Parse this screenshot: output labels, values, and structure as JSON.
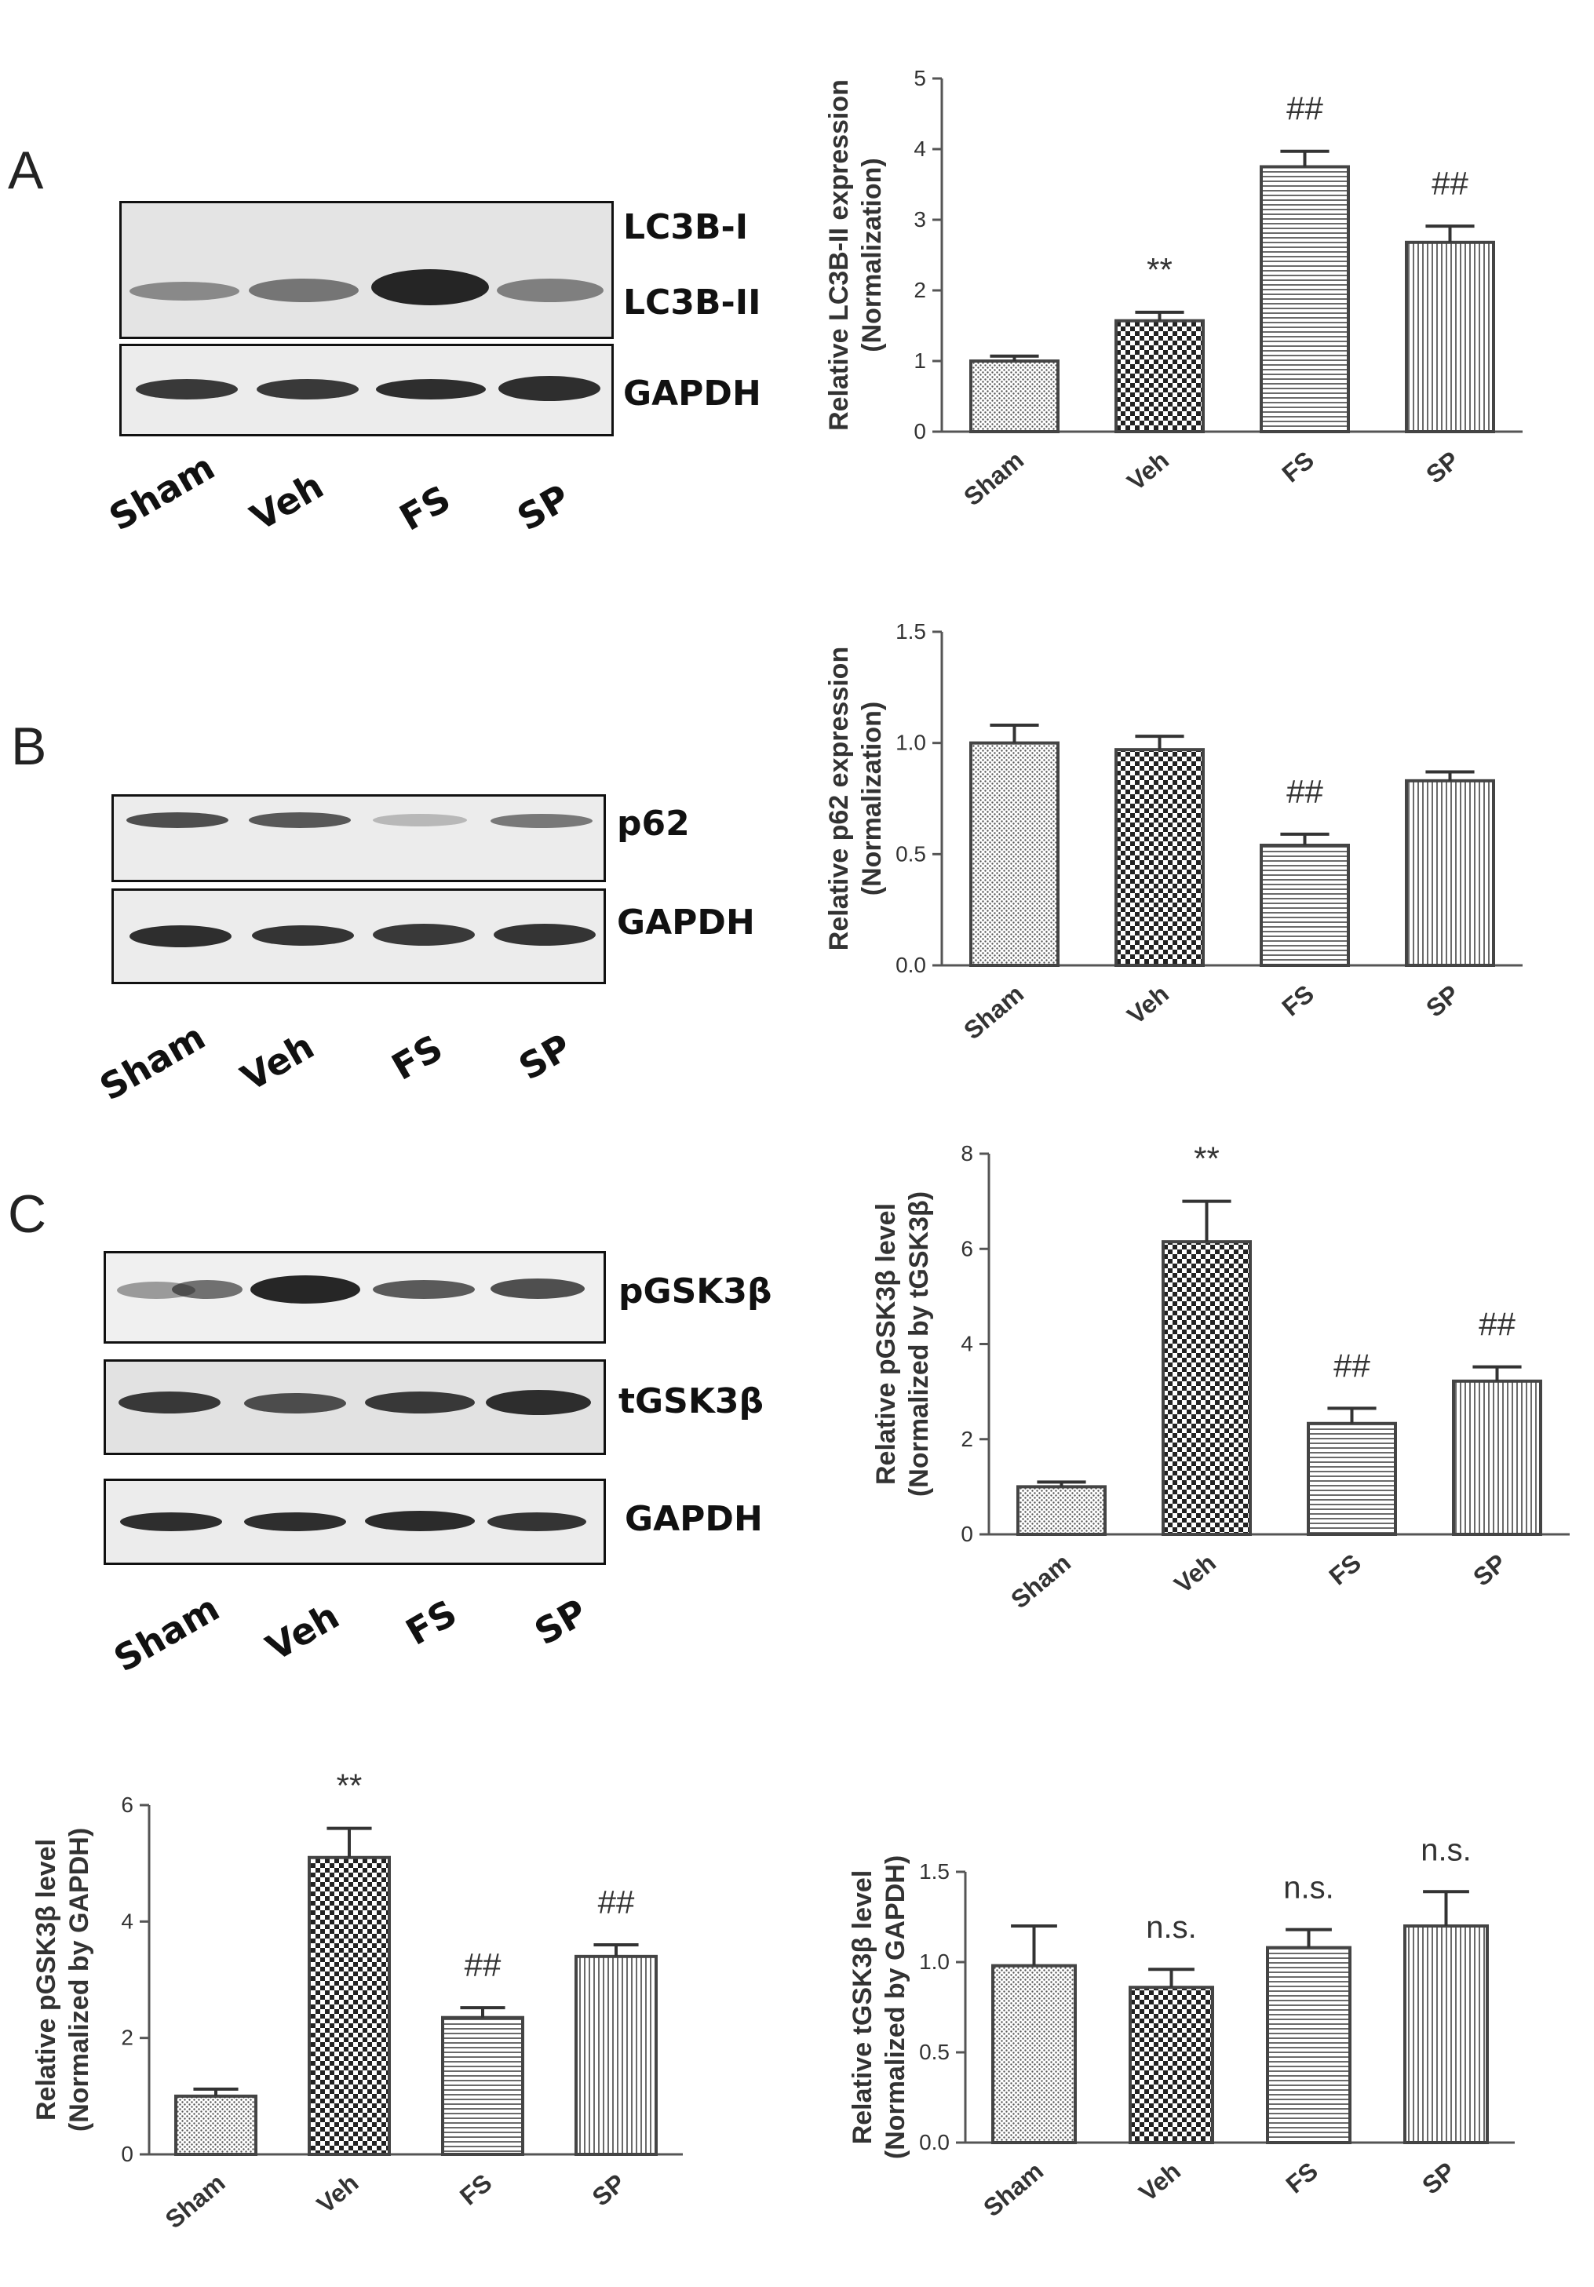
{
  "panels": {
    "A": {
      "letter": "A",
      "blot": {
        "labels": [
          "LC3B-I",
          "LC3B-II",
          "GAPDH"
        ],
        "lanes": [
          "Sham",
          "Veh",
          "FS",
          "SP"
        ]
      }
    },
    "B": {
      "letter": "B",
      "blot": {
        "labels": [
          "p62",
          "GAPDH"
        ],
        "lanes": [
          "Sham",
          "Veh",
          "FS",
          "SP"
        ]
      }
    },
    "C": {
      "letter": "C",
      "blot": {
        "labels": [
          "pGSK3β",
          "tGSK3β",
          "GAPDH"
        ],
        "lanes": [
          "Sham",
          "Veh",
          "FS",
          "SP"
        ]
      }
    }
  },
  "colors": {
    "bar_stroke": "#444444",
    "axis": "#555555",
    "band": "#1a1a1a"
  },
  "chart_data": [
    {
      "type": "bar",
      "categories": [
        "Sham",
        "Veh",
        "FS",
        "SP"
      ],
      "values": [
        1.0,
        1.57,
        3.75,
        2.68
      ],
      "errors": [
        0.07,
        0.12,
        0.22,
        0.23
      ],
      "annotations": [
        "",
        "**",
        "##",
        "##"
      ],
      "patterns": [
        "dots",
        "checker",
        "hlines",
        "vlines"
      ],
      "ylabel": [
        "Relative LC3B-II expression",
        "(Normalization)"
      ],
      "yticks": [
        0,
        1,
        2,
        3,
        4,
        5
      ],
      "ylim": [
        0,
        5
      ]
    },
    {
      "type": "bar",
      "categories": [
        "Sham",
        "Veh",
        "FS",
        "SP"
      ],
      "values": [
        1.0,
        0.97,
        0.54,
        0.83
      ],
      "errors": [
        0.08,
        0.06,
        0.05,
        0.04
      ],
      "annotations": [
        "",
        "",
        "##",
        ""
      ],
      "patterns": [
        "dots",
        "checker",
        "hlines",
        "vlines"
      ],
      "ylabel": [
        "Relative p62 expression",
        "(Normalization)"
      ],
      "yticks": [
        "0.0",
        "0.5",
        "1.0",
        "1.5"
      ],
      "ylim": [
        0,
        1.5
      ]
    },
    {
      "type": "bar",
      "categories": [
        "Sham",
        "Veh",
        "FS",
        "SP"
      ],
      "values": [
        1.0,
        6.15,
        2.33,
        3.22
      ],
      "errors": [
        0.1,
        0.85,
        0.32,
        0.3
      ],
      "annotations": [
        "",
        "**",
        "##",
        "##"
      ],
      "patterns": [
        "dots",
        "checker",
        "hlines",
        "vlines"
      ],
      "ylabel": [
        "Relative pGSK3β level",
        "(Normalized by tGSK3β)"
      ],
      "yticks": [
        0,
        2,
        4,
        6,
        8
      ],
      "ylim": [
        0,
        8
      ]
    },
    {
      "type": "bar",
      "categories": [
        "Sham",
        "Veh",
        "FS",
        "SP"
      ],
      "values": [
        1.0,
        5.1,
        2.35,
        3.4
      ],
      "errors": [
        0.12,
        0.5,
        0.17,
        0.2
      ],
      "annotations": [
        "",
        "**",
        "##",
        "##"
      ],
      "patterns": [
        "dots",
        "checker",
        "hlines",
        "vlines"
      ],
      "ylabel": [
        "Relative pGSK3β level",
        "(Normalized by GAPDH)"
      ],
      "yticks": [
        0,
        2,
        4,
        6
      ],
      "ylim": [
        0,
        6
      ]
    },
    {
      "type": "bar",
      "categories": [
        "Sham",
        "Veh",
        "FS",
        "SP"
      ],
      "values": [
        0.98,
        0.86,
        1.08,
        1.2
      ],
      "errors": [
        0.22,
        0.1,
        0.1,
        0.19
      ],
      "annotations": [
        "",
        "n.s.",
        "n.s.",
        "n.s."
      ],
      "patterns": [
        "dots",
        "checker",
        "hlines",
        "vlines"
      ],
      "ylabel": [
        "Relative tGSK3β level",
        "(Normalized by GAPDH)"
      ],
      "yticks": [
        "0.0",
        "0.5",
        "1.0",
        "1.5"
      ],
      "ylim": [
        0,
        1.5
      ]
    }
  ]
}
